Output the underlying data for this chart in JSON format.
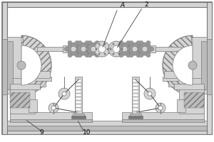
{
  "bg_color": "#e8e8e8",
  "line_color": "#444444",
  "dark_gray": "#777777",
  "mid_gray": "#999999",
  "light_gray": "#bbbbbb",
  "lighter_gray": "#d4d4d4",
  "white": "#ffffff",
  "hatch_gray": "#888888",
  "label_A": "A",
  "label_2": "2",
  "label_9": "9",
  "label_10": "10",
  "figsize": [
    3.0,
    2.0
  ],
  "dpi": 100
}
